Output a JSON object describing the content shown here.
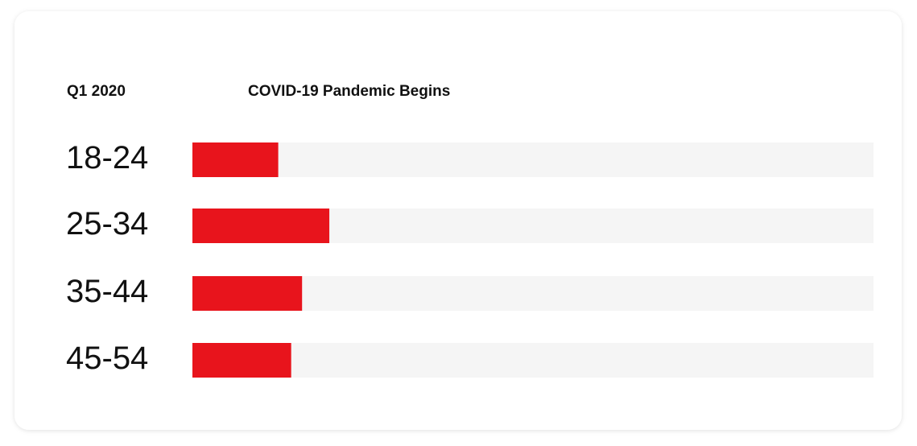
{
  "chart_data": {
    "type": "bar",
    "period": "Q1 2020",
    "title": "COVID-19 Pandemic Begins",
    "categories": [
      "18-24",
      "25-34",
      "35-44",
      "45-54"
    ],
    "values": [
      12.6,
      20.1,
      16.1,
      14.5
    ],
    "color": "#e8141c",
    "track_color": "#f5f5f5",
    "xlim": [
      0,
      100
    ]
  }
}
